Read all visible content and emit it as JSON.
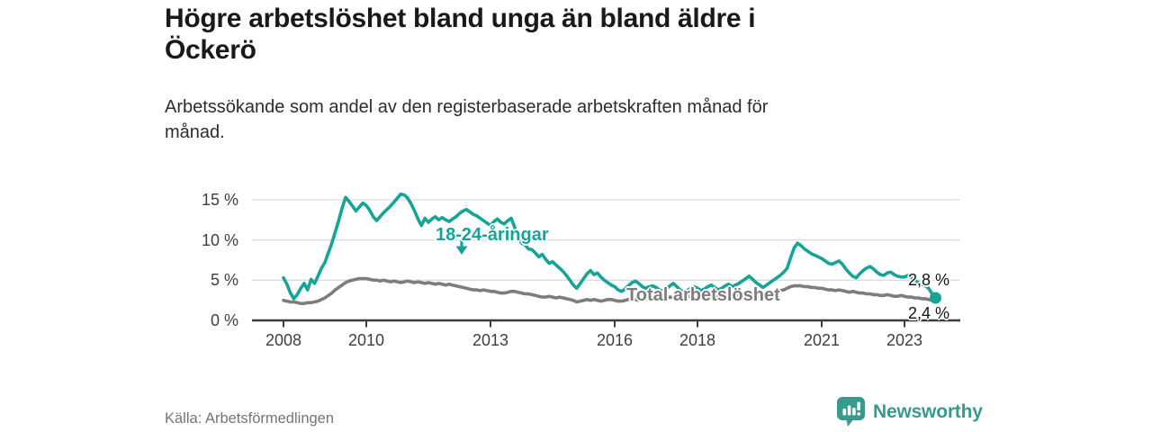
{
  "header": {
    "title_line1": "Högre arbetslöshet bland unga än bland äldre i",
    "title_line2": "Öckerö",
    "subtitle_line1": "Arbetssökande som andel av den registerbaserade arbetskraften månad för",
    "subtitle_line2": "månad."
  },
  "footer": {
    "source": "Källa: Arbetsförmedlingen",
    "brand": "Newsworthy"
  },
  "colors": {
    "young_line": "#18a398",
    "total_line": "#7d7d7d",
    "grid": "#dcdcdc",
    "axis": "#3c3c3c",
    "value_label": "#141414",
    "brand_teal": "#38998f",
    "title_text": "#191919",
    "muted_text": "#757575"
  },
  "chart_data": {
    "type": "line",
    "title": "Högre arbetslöshet bland unga än bland äldre i Öckerö",
    "subtitle": "Arbetssökande som andel av den registerbaserade arbetskraften månad för månad.",
    "unit": "%",
    "grid": true,
    "x_start": 2008.0,
    "points_per_year": 12,
    "xlim": [
      2007.3,
      2024.4
    ],
    "ylim": [
      0,
      16.8
    ],
    "y_ticks": [
      {
        "value": 0,
        "label": "0 %"
      },
      {
        "value": 5,
        "label": "5 %"
      },
      {
        "value": 10,
        "label": "10 %"
      },
      {
        "value": 15,
        "label": "15 %"
      }
    ],
    "x_ticks": [
      {
        "value": 2008,
        "label": "2008"
      },
      {
        "value": 2010,
        "label": "2010"
      },
      {
        "value": 2013,
        "label": "2013"
      },
      {
        "value": 2016,
        "label": "2016"
      },
      {
        "value": 2018,
        "label": "2018"
      },
      {
        "value": 2021,
        "label": "2021"
      },
      {
        "value": 2023,
        "label": "2023"
      }
    ],
    "series": [
      {
        "name": "18-24-åringar",
        "color": "#18a398",
        "end_value_label": "2,8 %",
        "end_dot": true,
        "values": [
          5.3,
          4.5,
          3.4,
          2.7,
          3.2,
          4.0,
          4.6,
          3.8,
          5.1,
          4.6,
          5.5,
          6.5,
          7.2,
          8.4,
          9.6,
          11.0,
          12.4,
          14.0,
          15.3,
          14.8,
          14.2,
          13.6,
          14.1,
          14.6,
          14.3,
          13.7,
          12.9,
          12.4,
          12.9,
          13.4,
          13.8,
          14.2,
          14.7,
          15.2,
          15.7,
          15.6,
          15.2,
          14.5,
          13.6,
          12.6,
          11.8,
          12.7,
          12.2,
          12.6,
          12.9,
          12.5,
          12.8,
          12.5,
          12.3,
          12.6,
          12.9,
          13.3,
          13.6,
          13.8,
          13.5,
          13.2,
          13.0,
          12.7,
          12.4,
          12.1,
          11.8,
          12.3,
          12.6,
          12.2,
          12.0,
          12.4,
          12.7,
          11.6,
          10.3,
          9.6,
          9.4,
          8.9,
          8.8,
          8.4,
          7.9,
          8.2,
          7.6,
          7.1,
          7.3,
          6.9,
          6.5,
          6.1,
          5.6,
          5.0,
          4.4,
          4.0,
          4.6,
          5.2,
          5.8,
          6.2,
          5.7,
          5.9,
          5.4,
          5.0,
          4.7,
          4.4,
          4.2,
          3.8,
          3.6,
          3.9,
          4.3,
          4.7,
          4.9,
          4.6,
          4.2,
          4.0,
          4.2,
          4.3,
          4.1,
          3.8,
          3.6,
          3.9,
          4.3,
          4.6,
          4.2,
          3.8,
          3.5,
          3.7,
          4.0,
          4.2,
          4.0,
          3.7,
          3.9,
          4.2,
          4.4,
          4.1,
          3.8,
          4.0,
          4.3,
          4.5,
          4.2,
          4.4,
          4.6,
          4.9,
          5.2,
          5.5,
          5.1,
          4.7,
          4.4,
          4.1,
          4.4,
          4.7,
          5.0,
          5.3,
          5.6,
          6.0,
          6.5,
          7.8,
          9.0,
          9.6,
          9.3,
          8.9,
          8.6,
          8.3,
          8.1,
          7.9,
          7.7,
          7.4,
          7.1,
          7.0,
          7.2,
          7.4,
          7.0,
          6.4,
          5.9,
          5.5,
          5.3,
          5.8,
          6.2,
          6.5,
          6.7,
          6.4,
          6.0,
          5.7,
          5.6,
          5.9,
          6.0,
          5.7,
          5.5,
          5.4,
          5.4,
          5.6,
          5.3,
          5.0,
          4.7,
          4.5,
          4.3,
          4.0,
          3.3,
          2.8
        ]
      },
      {
        "name": "Total arbetslöshet",
        "color": "#7d7d7d",
        "end_value_label": "2,4 %",
        "end_dot": false,
        "values": [
          2.5,
          2.4,
          2.3,
          2.3,
          2.2,
          2.1,
          2.1,
          2.2,
          2.2,
          2.3,
          2.4,
          2.6,
          2.8,
          3.1,
          3.4,
          3.8,
          4.1,
          4.4,
          4.7,
          4.9,
          5.0,
          5.1,
          5.2,
          5.2,
          5.2,
          5.1,
          5.0,
          5.0,
          4.9,
          5.0,
          4.9,
          4.8,
          4.9,
          4.8,
          4.7,
          4.8,
          4.9,
          4.8,
          4.7,
          4.8,
          4.7,
          4.6,
          4.7,
          4.6,
          4.5,
          4.6,
          4.5,
          4.4,
          4.5,
          4.4,
          4.3,
          4.2,
          4.1,
          4.0,
          3.9,
          3.8,
          3.8,
          3.7,
          3.8,
          3.7,
          3.6,
          3.6,
          3.5,
          3.4,
          3.4,
          3.5,
          3.6,
          3.6,
          3.5,
          3.4,
          3.3,
          3.3,
          3.2,
          3.1,
          3.0,
          2.9,
          2.9,
          3.0,
          2.9,
          2.8,
          2.9,
          2.8,
          2.7,
          2.6,
          2.5,
          2.3,
          2.4,
          2.5,
          2.6,
          2.5,
          2.6,
          2.5,
          2.4,
          2.5,
          2.6,
          2.6,
          2.5,
          2.4,
          2.4,
          2.5,
          2.6,
          2.7,
          2.6,
          2.5,
          2.6,
          2.7,
          2.8,
          2.8,
          2.7,
          2.6,
          2.7,
          2.8,
          2.9,
          2.8,
          2.7,
          2.8,
          2.9,
          3.0,
          3.0,
          2.9,
          2.8,
          2.9,
          3.0,
          3.1,
          3.0,
          2.9,
          3.0,
          3.1,
          3.2,
          3.2,
          3.1,
          3.2,
          3.2,
          3.1,
          3.2,
          3.3,
          3.2,
          3.1,
          3.2,
          3.3,
          3.4,
          3.5,
          3.5,
          3.6,
          3.7,
          3.8,
          4.0,
          4.2,
          4.3,
          4.3,
          4.3,
          4.2,
          4.2,
          4.1,
          4.1,
          4.0,
          4.0,
          3.9,
          3.8,
          3.8,
          3.7,
          3.8,
          3.7,
          3.6,
          3.5,
          3.6,
          3.5,
          3.4,
          3.4,
          3.3,
          3.3,
          3.2,
          3.2,
          3.1,
          3.1,
          3.2,
          3.1,
          3.0,
          3.0,
          3.1,
          3.0,
          2.9,
          2.9,
          2.8,
          2.8,
          2.7,
          2.7,
          2.6,
          2.5,
          2.4
        ]
      }
    ],
    "annotations": [
      {
        "text": "18-24-åringar",
        "series": 0,
        "arrow": "down"
      },
      {
        "text": "Total arbetslöshet",
        "series": 1
      }
    ],
    "legend_position": "inline-labels"
  }
}
